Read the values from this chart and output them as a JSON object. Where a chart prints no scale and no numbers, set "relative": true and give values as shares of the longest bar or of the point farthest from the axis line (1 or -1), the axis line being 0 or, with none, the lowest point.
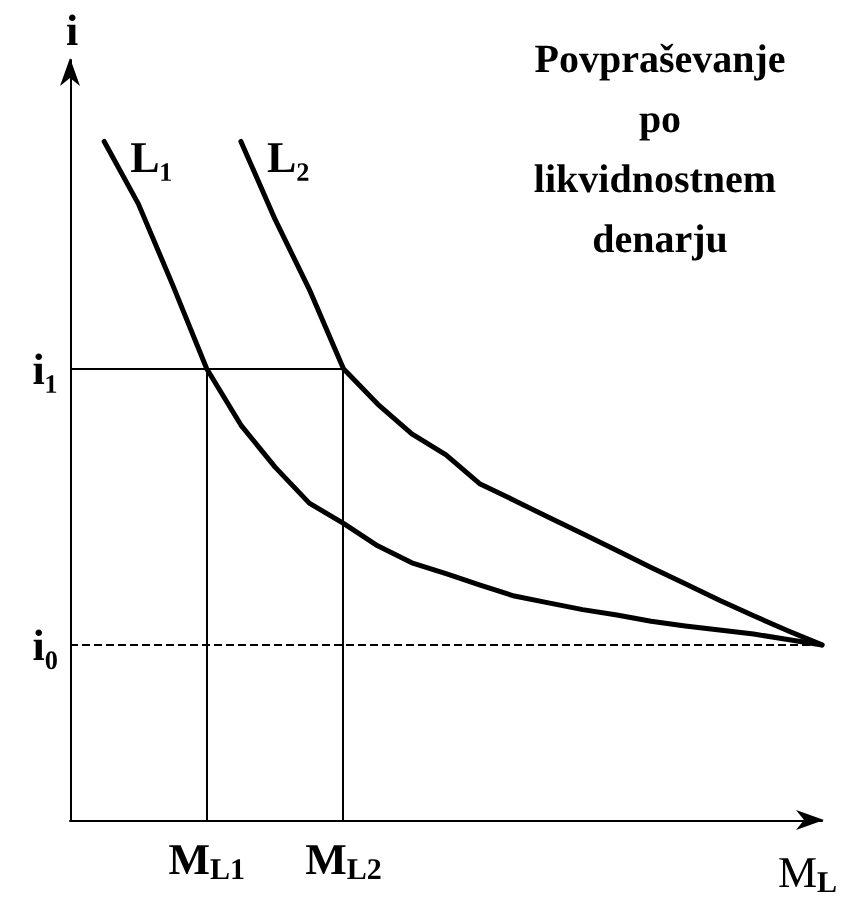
{
  "chart_data": {
    "type": "line",
    "relative": true,
    "title": "Povpraševanje po likvidnostnem denarju",
    "xlabel": "M$_{L}$",
    "ylabel": "i",
    "marker": "none",
    "line_style": "solid",
    "grid": false,
    "categories": [
      null,
      null,
      null,
      null,
      "M$_{L1}$",
      null,
      null,
      null,
      "M$_{L2}$",
      null,
      null,
      null,
      null,
      null,
      null,
      null,
      null,
      null,
      null,
      null,
      null,
      null,
      null
    ],
    "series": [
      {
        "name": "L₁",
        "color": "#000000",
        "values": [
          null,
          1,
          0.908,
          0.789,
          0.665,
          0.582,
          0.52,
          0.467,
          0.437,
          0.404,
          0.379,
          0.363,
          0.346,
          0.33,
          0.32,
          0.31,
          0.302,
          0.293,
          0.286,
          0.28,
          0.274,
          0.266,
          0.258
        ]
      },
      {
        "name": "L₂",
        "color": "#000000",
        "values": [
          null,
          null,
          null,
          null,
          null,
          1,
          0.885,
          0.782,
          0.665,
          0.613,
          0.569,
          0.538,
          0.495,
          0.471,
          0.446,
          0.422,
          0.397,
          0.372,
          0.348,
          0.324,
          0.301,
          0.279,
          0.258
        ]
      }
    ],
    "ref_lines": [
      {
        "axis": "y",
        "value": 0.665,
        "label": "i₁",
        "line_style": "solid"
      },
      {
        "axis": "y",
        "value": 0.258,
        "label": "i₀",
        "line_style": "dashed"
      },
      {
        "axis": "x",
        "value": "M$_{L1}$",
        "line_style": "solid"
      },
      {
        "axis": "x",
        "value": "M$_{L2}$",
        "line_style": "solid"
      }
    ]
  }
}
